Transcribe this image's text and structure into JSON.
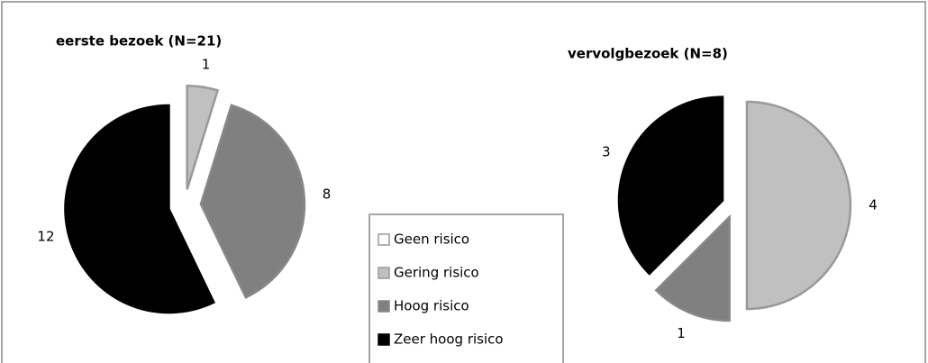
{
  "legend": {
    "categories": [
      "Geen risico",
      "Gering risico",
      "Hoog risico",
      "Zeer hoog risico"
    ],
    "colors": [
      "#ffffff",
      "#c0c0c0",
      "#808080",
      "#000000"
    ]
  },
  "chart_data": [
    {
      "type": "pie",
      "title": "eerste bezoek (N=21)",
      "values": [
        0,
        1,
        8,
        12
      ]
    },
    {
      "type": "pie",
      "title": "vervolgbezoek (N=8)",
      "values": [
        0,
        4,
        1,
        3
      ]
    }
  ]
}
